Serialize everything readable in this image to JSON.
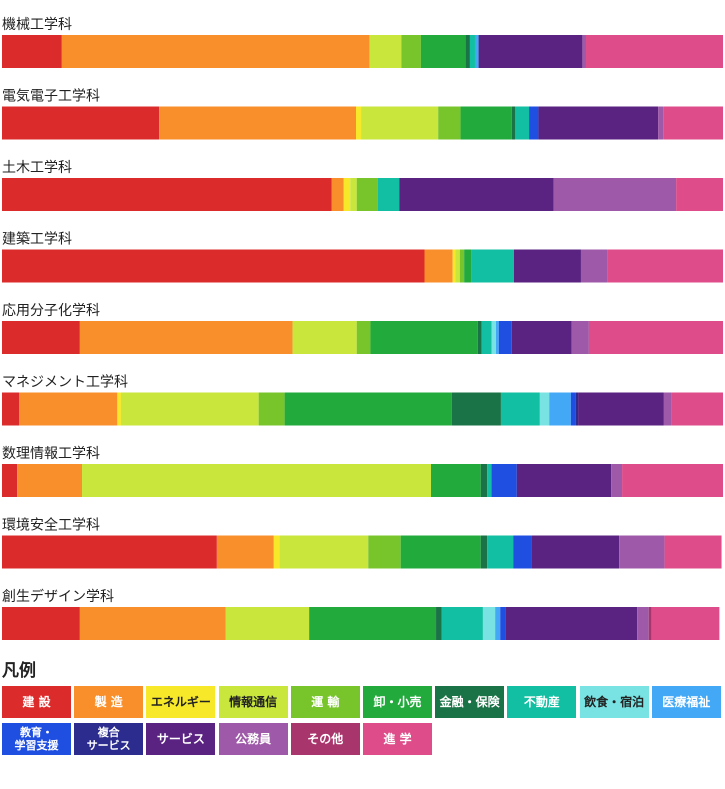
{
  "legend_title": "凡例",
  "chart_data": {
    "type": "bar",
    "orientation": "horizontal",
    "stacked": true,
    "percent": true,
    "xlim": [
      0,
      100
    ],
    "grid": false,
    "categories": [
      "機械工学科",
      "電気電子工学科",
      "土木工学科",
      "建築工学科",
      "応用分子化学科",
      "マネジメント工学科",
      "数理情報工学科",
      "環境安全工学科",
      "創生デザイン学科"
    ],
    "series": [
      {
        "name": "建 設",
        "color": "#dc2b2b",
        "text_color": "#ffffff",
        "values": [
          8.3,
          21.8,
          45.7,
          58.6,
          10.8,
          2.4,
          2.1,
          29.8,
          10.8
        ]
      },
      {
        "name": "製 造",
        "color": "#f98f2b",
        "text_color": "#ffffff",
        "values": [
          42.7,
          27.3,
          1.7,
          3.9,
          29.5,
          13.6,
          9.0,
          7.9,
          20.2
        ]
      },
      {
        "name": "エネルギー",
        "color": "#f7e82a",
        "text_color": "#222222",
        "values": [
          0.0,
          0.7,
          0.9,
          0.4,
          0.0,
          0.5,
          0.0,
          0.8,
          0.0
        ]
      },
      {
        "name": "情報通信",
        "color": "#c8e63c",
        "text_color": "#222222",
        "values": [
          4.4,
          10.7,
          0.9,
          0.6,
          8.9,
          19.1,
          48.4,
          12.3,
          11.6
        ]
      },
      {
        "name": "運 輸",
        "color": "#78c52b",
        "text_color": "#ffffff",
        "values": [
          2.7,
          3.1,
          2.9,
          0.6,
          1.9,
          3.6,
          0.0,
          4.5,
          0.0
        ]
      },
      {
        "name": "卸・小売",
        "color": "#22aa3c",
        "text_color": "#ffffff",
        "values": [
          6.2,
          7.1,
          0.0,
          1.0,
          14.9,
          23.2,
          6.9,
          11.1,
          17.6
        ]
      },
      {
        "name": "金融・保険",
        "color": "#1a7346",
        "text_color": "#ffffff",
        "values": [
          0.6,
          0.5,
          0.0,
          0.0,
          0.5,
          6.8,
          0.9,
          0.9,
          0.8
        ]
      },
      {
        "name": "不動産",
        "color": "#12bfa2",
        "text_color": "#ffffff",
        "values": [
          0.7,
          1.9,
          3.0,
          5.9,
          1.4,
          5.4,
          0.6,
          3.6,
          5.7
        ]
      },
      {
        "name": "飲食・宿泊",
        "color": "#79e3e3",
        "text_color": "#222222",
        "values": [
          0.0,
          0.0,
          0.0,
          0.0,
          0.6,
          1.3,
          0.0,
          0.0,
          1.7
        ]
      },
      {
        "name": "医療福祉",
        "color": "#43a8f5",
        "text_color": "#ffffff",
        "values": [
          0.5,
          0.0,
          0.0,
          0.0,
          0.4,
          3.0,
          0.0,
          0.0,
          0.7
        ]
      },
      {
        "name": "教育・\n学習支援",
        "color": "#1f4fe0",
        "text_color": "#ffffff",
        "values": [
          0.0,
          1.3,
          0.0,
          0.0,
          1.8,
          0.7,
          3.5,
          2.5,
          0.7
        ]
      },
      {
        "name": "複合\nサービス",
        "color": "#2c2c8e",
        "text_color": "#ffffff",
        "values": [
          0.0,
          0.0,
          0.0,
          0.0,
          0.0,
          0.3,
          0.0,
          0.0,
          0.0
        ]
      },
      {
        "name": "サービス",
        "color": "#5a2382",
        "text_color": "#ffffff",
        "values": [
          14.4,
          16.6,
          21.4,
          9.3,
          8.3,
          11.9,
          13.1,
          12.2,
          18.3
        ]
      },
      {
        "name": "公務員",
        "color": "#9e5aa8",
        "text_color": "#ffffff",
        "values": [
          0.5,
          0.7,
          17.0,
          3.7,
          2.4,
          1.1,
          1.5,
          6.3,
          1.6
        ]
      },
      {
        "name": "その他",
        "color": "#a8356b",
        "text_color": "#ffffff",
        "values": [
          0.0,
          0.0,
          0.0,
          0.0,
          0.0,
          0.0,
          0.0,
          0.0,
          0.4
        ]
      },
      {
        "name": "進 学",
        "color": "#de4d8a",
        "text_color": "#ffffff",
        "values": [
          19.0,
          8.3,
          6.5,
          16.0,
          18.6,
          7.1,
          14.0,
          7.9,
          9.4
        ]
      }
    ]
  }
}
